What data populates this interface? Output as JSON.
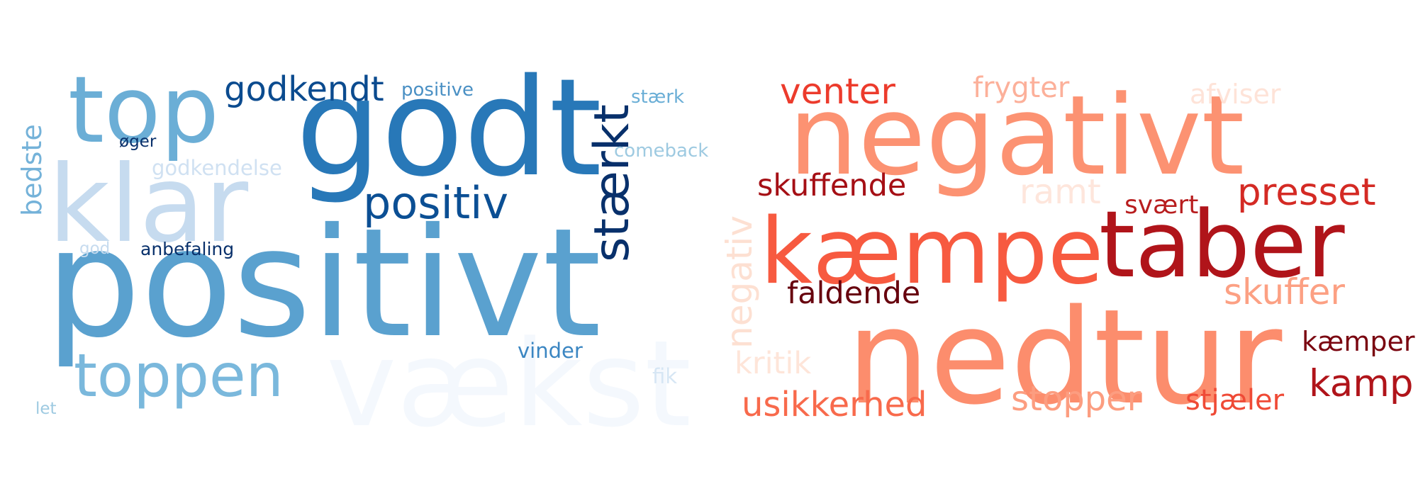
{
  "clouds": {
    "positive": {
      "words": [
        {
          "text": "vækst",
          "color": "#f4f8fd"
        },
        {
          "text": "klar",
          "color": "#c6dbef"
        },
        {
          "text": "positivt",
          "color": "#5aa1cf"
        },
        {
          "text": "godt",
          "color": "#2878b8"
        },
        {
          "text": "top",
          "color": "#6baed6"
        },
        {
          "text": "godkendt",
          "color": "#0b4b8f"
        },
        {
          "text": "positive",
          "color": "#4a90c4"
        },
        {
          "text": "stærkt",
          "color": "#08306b"
        },
        {
          "text": "stærk",
          "color": "#6aaed6"
        },
        {
          "text": "øger",
          "color": "#08306b"
        },
        {
          "text": "comeback",
          "color": "#9ecae1"
        },
        {
          "text": "bedste",
          "color": "#74b2d9"
        },
        {
          "text": "godkendelse",
          "color": "#d0e1f2"
        },
        {
          "text": "positiv",
          "color": "#0b4f94"
        },
        {
          "text": "god",
          "color": "#c6dbef"
        },
        {
          "text": "anbefaling",
          "color": "#08306b"
        },
        {
          "text": "toppen",
          "color": "#7ab8dc"
        },
        {
          "text": "vinder",
          "color": "#3b86c2"
        },
        {
          "text": "fik",
          "color": "#d6e6f4"
        },
        {
          "text": "let",
          "color": "#9ecae1"
        }
      ]
    },
    "negative": {
      "words": [
        {
          "text": "nedtur",
          "color": "#fc8d6d"
        },
        {
          "text": "negativt",
          "color": "#fc9272"
        },
        {
          "text": "kæmpe",
          "color": "#f75a40"
        },
        {
          "text": "taber",
          "color": "#b0141a"
        },
        {
          "text": "venter",
          "color": "#ec3b2c"
        },
        {
          "text": "frygter",
          "color": "#fcb09a"
        },
        {
          "text": "afviser",
          "color": "#fee3d8"
        },
        {
          "text": "skuffende",
          "color": "#a50f15"
        },
        {
          "text": "ramt",
          "color": "#fee6dc"
        },
        {
          "text": "svært",
          "color": "#b81d1e"
        },
        {
          "text": "presset",
          "color": "#d42a24"
        },
        {
          "text": "negativ",
          "color": "#fde0d2"
        },
        {
          "text": "faldende",
          "color": "#67000d"
        },
        {
          "text": "skuffer",
          "color": "#fca083"
        },
        {
          "text": "kritik",
          "color": "#fee5d9"
        },
        {
          "text": "kæmper",
          "color": "#7a0510"
        },
        {
          "text": "usikkerhed",
          "color": "#f86a4c"
        },
        {
          "text": "stopper",
          "color": "#fc9d80"
        },
        {
          "text": "stjæler",
          "color": "#ef4a36"
        },
        {
          "text": "kamp",
          "color": "#b0141a"
        }
      ]
    }
  }
}
